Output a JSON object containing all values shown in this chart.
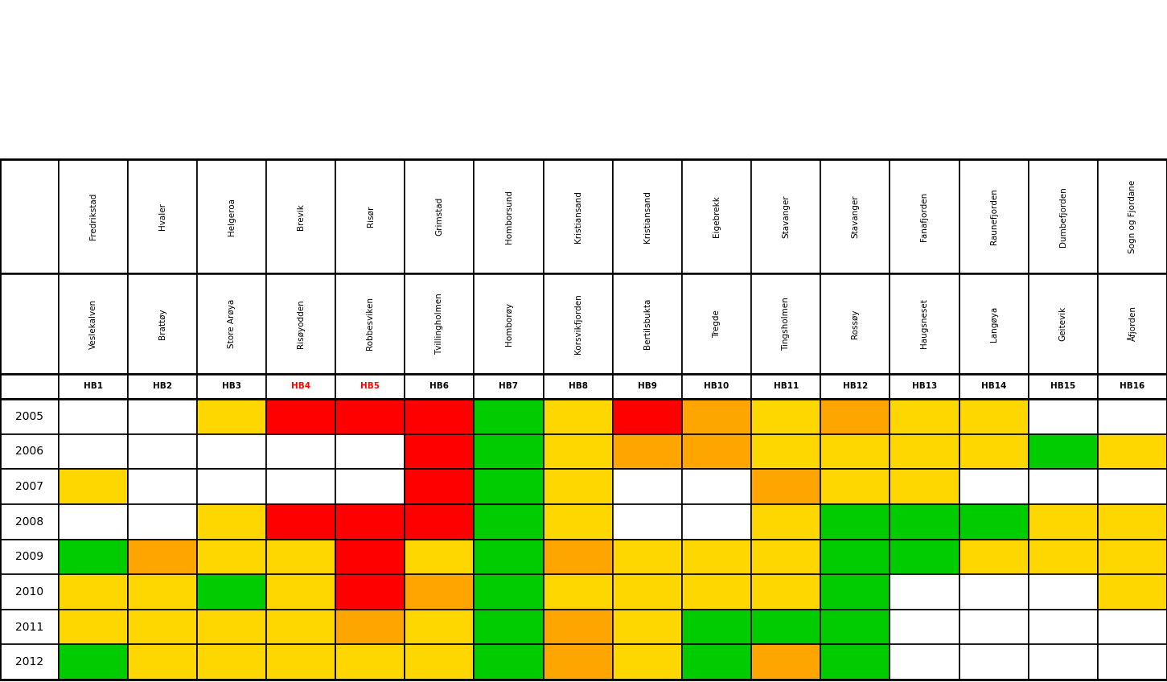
{
  "row1_labels": [
    "Fredrikstad",
    "Hvaler",
    "Helgeroa",
    "Brevik",
    "Risør",
    "Grimstad",
    "Homborsund",
    "Kristiansand",
    "Kristiansand",
    "Eigebrekk",
    "Stavanger",
    "Stavanger",
    "Fanafjorden",
    "Raunefjorden",
    "Dumbefjorden",
    "Sogn og Fjordane"
  ],
  "row2_labels": [
    "Veslekalven",
    "Brattøy",
    "Store Arøya",
    "Risøyodden",
    "Robbesviken",
    "Tvillingholmen",
    "Homborøy",
    "Korsvikfjorden",
    "Bertilsbukta",
    "Tregde",
    "Tingsholmen",
    "Rossøy",
    "Haugsneset",
    "Langøya",
    "Geitevik",
    "Åfjorden"
  ],
  "hb_labels": [
    "HB1",
    "HB2",
    "HB3",
    "HB4",
    "HB5",
    "HB6",
    "HB7",
    "HB8",
    "HB9",
    "HB10",
    "HB11",
    "HB12",
    "HB13",
    "HB14",
    "HB15",
    "HB16"
  ],
  "hb_red": [
    "HB4",
    "HB5"
  ],
  "years": [
    "2005",
    "2006",
    "2007",
    "2008",
    "2009",
    "2010",
    "2011",
    "2012"
  ],
  "color_map": {
    "W": "#FFFFFF",
    "Y": "#FFD700",
    "O": "#FFA500",
    "G": "#00CC00",
    "R": "#FF0000"
  },
  "colors": {
    "2005": [
      "W",
      "W",
      "Y",
      "R",
      "R",
      "R",
      "G",
      "Y",
      "R",
      "O",
      "Y",
      "O",
      "Y",
      "Y",
      "W",
      "W"
    ],
    "2006": [
      "W",
      "W",
      "W",
      "W",
      "W",
      "R",
      "G",
      "Y",
      "O",
      "O",
      "Y",
      "Y",
      "Y",
      "Y",
      "G",
      "Y"
    ],
    "2007": [
      "Y",
      "W",
      "W",
      "W",
      "W",
      "R",
      "G",
      "Y",
      "W",
      "W",
      "O",
      "Y",
      "Y",
      "W",
      "W",
      "W"
    ],
    "2008": [
      "W",
      "W",
      "Y",
      "R",
      "R",
      "R",
      "G",
      "Y",
      "W",
      "W",
      "Y",
      "G",
      "G",
      "G",
      "Y",
      "Y"
    ],
    "2009": [
      "G",
      "O",
      "Y",
      "Y",
      "R",
      "Y",
      "G",
      "O",
      "Y",
      "Y",
      "Y",
      "G",
      "G",
      "Y",
      "Y",
      "Y"
    ],
    "2010": [
      "Y",
      "Y",
      "G",
      "Y",
      "R",
      "O",
      "G",
      "Y",
      "Y",
      "Y",
      "Y",
      "G",
      "W",
      "W",
      "W",
      "Y"
    ],
    "2011": [
      "Y",
      "Y",
      "Y",
      "Y",
      "O",
      "Y",
      "G",
      "O",
      "Y",
      "G",
      "G",
      "G",
      "W",
      "W",
      "W",
      "W"
    ],
    "2012": [
      "G",
      "Y",
      "Y",
      "Y",
      "Y",
      "Y",
      "G",
      "O",
      "Y",
      "G",
      "O",
      "G",
      "W",
      "W",
      "W",
      "W"
    ]
  },
  "lw_cell": 1.2,
  "lw_outer": 2.0,
  "year_fontsize": 10,
  "hb_fontsize": 7.5,
  "label_fontsize": 7.5
}
